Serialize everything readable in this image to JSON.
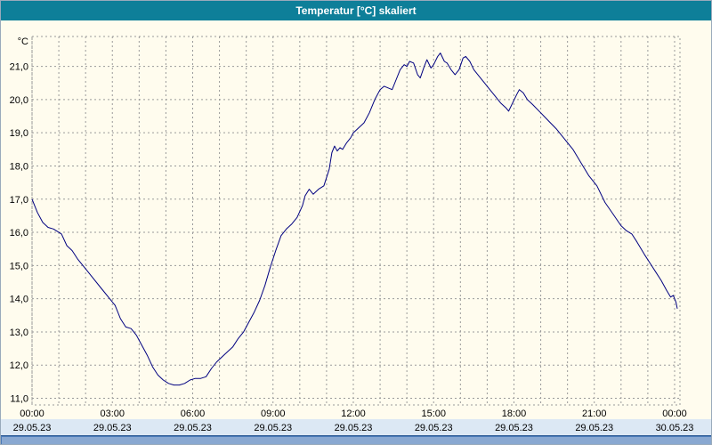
{
  "window": {
    "title": "Temperatur [°C] skaliert"
  },
  "colors": {
    "titlebar_bg": "#0e7f99",
    "titlebar_text": "#ffffff",
    "chart_bg": "#fffcee",
    "grid": "#9a9a9a",
    "text": "#000000",
    "line": "#000080",
    "date_band_bg": "#dce8f4",
    "scrollbar": "#4a7ab8"
  },
  "chart_data": {
    "type": "line",
    "title": "Temperatur [°C] skaliert",
    "unit_label": "°C",
    "xlabel": "",
    "ylabel": "°C",
    "ylim": [
      10.8,
      21.9
    ],
    "xlim": [
      0,
      24.2
    ],
    "grid": "on",
    "grid_step_hours": 1,
    "legend_position": "none",
    "y_ticks": [
      {
        "v": 21,
        "label": "21,0"
      },
      {
        "v": 20,
        "label": "20,0"
      },
      {
        "v": 19,
        "label": "19,0"
      },
      {
        "v": 18,
        "label": "18,0"
      },
      {
        "v": 17,
        "label": "17,0"
      },
      {
        "v": 16,
        "label": "16,0"
      },
      {
        "v": 15,
        "label": "15,0"
      },
      {
        "v": 14,
        "label": "14,0"
      },
      {
        "v": 13,
        "label": "13,0"
      },
      {
        "v": 12,
        "label": "12,0"
      },
      {
        "v": 11,
        "label": "11,0"
      }
    ],
    "x_ticks": [
      {
        "h": 0,
        "time": "00:00",
        "date": "29.05.23"
      },
      {
        "h": 3,
        "time": "03:00",
        "date": "29.05.23"
      },
      {
        "h": 6,
        "time": "06:00",
        "date": "29.05.23"
      },
      {
        "h": 9,
        "time": "09:00",
        "date": "29.05.23"
      },
      {
        "h": 12,
        "time": "12:00",
        "date": "29.05.23"
      },
      {
        "h": 15,
        "time": "15:00",
        "date": "29.05.23"
      },
      {
        "h": 18,
        "time": "18:00",
        "date": "29.05.23"
      },
      {
        "h": 21,
        "time": "21:00",
        "date": "29.05.23"
      },
      {
        "h": 24,
        "time": "00:00",
        "date": "30.05.23"
      }
    ],
    "series": [
      {
        "name": "Temperatur",
        "color": "#000080",
        "points": [
          [
            0,
            17.0
          ],
          [
            0.2,
            16.6
          ],
          [
            0.4,
            16.3
          ],
          [
            0.6,
            16.15
          ],
          [
            0.8,
            16.1
          ],
          [
            1.0,
            16.0
          ],
          [
            1.1,
            15.95
          ],
          [
            1.3,
            15.6
          ],
          [
            1.5,
            15.45
          ],
          [
            1.7,
            15.2
          ],
          [
            2.0,
            14.9
          ],
          [
            2.3,
            14.6
          ],
          [
            2.6,
            14.3
          ],
          [
            2.9,
            14.0
          ],
          [
            3.1,
            13.8
          ],
          [
            3.3,
            13.4
          ],
          [
            3.5,
            13.15
          ],
          [
            3.7,
            13.1
          ],
          [
            3.9,
            12.9
          ],
          [
            4.1,
            12.6
          ],
          [
            4.3,
            12.3
          ],
          [
            4.5,
            11.95
          ],
          [
            4.7,
            11.7
          ],
          [
            4.9,
            11.55
          ],
          [
            5.1,
            11.45
          ],
          [
            5.3,
            11.4
          ],
          [
            5.5,
            11.4
          ],
          [
            5.7,
            11.45
          ],
          [
            5.9,
            11.55
          ],
          [
            6.1,
            11.6
          ],
          [
            6.3,
            11.6
          ],
          [
            6.5,
            11.65
          ],
          [
            6.7,
            11.9
          ],
          [
            6.9,
            12.1
          ],
          [
            7.1,
            12.25
          ],
          [
            7.3,
            12.4
          ],
          [
            7.5,
            12.55
          ],
          [
            7.7,
            12.8
          ],
          [
            7.9,
            13.0
          ],
          [
            8.1,
            13.3
          ],
          [
            8.3,
            13.6
          ],
          [
            8.5,
            13.95
          ],
          [
            8.7,
            14.4
          ],
          [
            8.9,
            14.95
          ],
          [
            9.1,
            15.45
          ],
          [
            9.3,
            15.9
          ],
          [
            9.5,
            16.1
          ],
          [
            9.7,
            16.25
          ],
          [
            9.9,
            16.45
          ],
          [
            10.1,
            16.8
          ],
          [
            10.2,
            17.1
          ],
          [
            10.35,
            17.3
          ],
          [
            10.5,
            17.15
          ],
          [
            10.7,
            17.3
          ],
          [
            10.9,
            17.4
          ],
          [
            11.1,
            17.9
          ],
          [
            11.2,
            18.4
          ],
          [
            11.3,
            18.6
          ],
          [
            11.4,
            18.45
          ],
          [
            11.5,
            18.55
          ],
          [
            11.6,
            18.5
          ],
          [
            11.75,
            18.7
          ],
          [
            11.9,
            18.85
          ],
          [
            12.0,
            19.0
          ],
          [
            12.2,
            19.15
          ],
          [
            12.4,
            19.3
          ],
          [
            12.6,
            19.6
          ],
          [
            12.8,
            20.0
          ],
          [
            13.0,
            20.3
          ],
          [
            13.15,
            20.4
          ],
          [
            13.3,
            20.35
          ],
          [
            13.45,
            20.3
          ],
          [
            13.6,
            20.6
          ],
          [
            13.75,
            20.9
          ],
          [
            13.9,
            21.05
          ],
          [
            14.0,
            21.0
          ],
          [
            14.1,
            21.15
          ],
          [
            14.25,
            21.1
          ],
          [
            14.4,
            20.75
          ],
          [
            14.5,
            20.65
          ],
          [
            14.65,
            21.0
          ],
          [
            14.75,
            21.2
          ],
          [
            14.9,
            20.95
          ],
          [
            15.0,
            21.05
          ],
          [
            15.15,
            21.3
          ],
          [
            15.25,
            21.4
          ],
          [
            15.4,
            21.15
          ],
          [
            15.5,
            21.1
          ],
          [
            15.65,
            20.9
          ],
          [
            15.8,
            20.75
          ],
          [
            15.95,
            20.9
          ],
          [
            16.1,
            21.25
          ],
          [
            16.2,
            21.3
          ],
          [
            16.35,
            21.15
          ],
          [
            16.5,
            20.9
          ],
          [
            16.7,
            20.7
          ],
          [
            16.9,
            20.5
          ],
          [
            17.1,
            20.3
          ],
          [
            17.3,
            20.1
          ],
          [
            17.5,
            19.9
          ],
          [
            17.7,
            19.75
          ],
          [
            17.8,
            19.65
          ],
          [
            17.95,
            19.9
          ],
          [
            18.1,
            20.15
          ],
          [
            18.2,
            20.3
          ],
          [
            18.35,
            20.2
          ],
          [
            18.5,
            20.0
          ],
          [
            18.7,
            19.85
          ],
          [
            19.0,
            19.6
          ],
          [
            19.3,
            19.35
          ],
          [
            19.6,
            19.1
          ],
          [
            19.9,
            18.8
          ],
          [
            20.2,
            18.5
          ],
          [
            20.5,
            18.1
          ],
          [
            20.8,
            17.7
          ],
          [
            21.1,
            17.4
          ],
          [
            21.4,
            16.9
          ],
          [
            21.7,
            16.55
          ],
          [
            22.0,
            16.2
          ],
          [
            22.2,
            16.05
          ],
          [
            22.4,
            15.95
          ],
          [
            22.6,
            15.7
          ],
          [
            22.9,
            15.3
          ],
          [
            23.1,
            15.05
          ],
          [
            23.3,
            14.8
          ],
          [
            23.5,
            14.55
          ],
          [
            23.7,
            14.25
          ],
          [
            23.85,
            14.05
          ],
          [
            23.95,
            14.1
          ],
          [
            24.05,
            13.9
          ],
          [
            24.1,
            13.7
          ]
        ]
      }
    ]
  }
}
